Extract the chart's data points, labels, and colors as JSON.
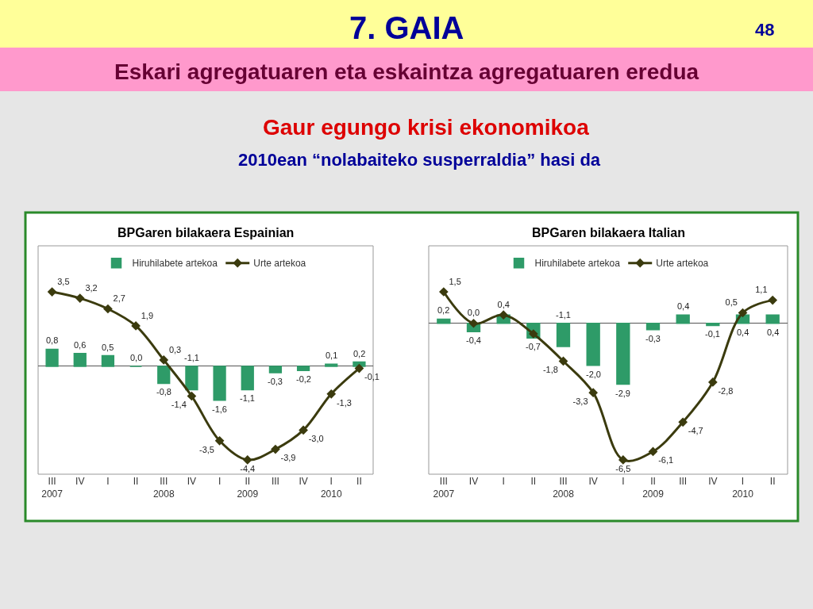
{
  "chart_data": [
    {
      "type": "bar",
      "title": "BPGaren bilakaera Espainian",
      "annotations": [
        "7. GAIA",
        "48",
        "Eskari agregatuaren eta eskaintza agregatuaren eredua",
        "Gaur egungo krisi ekonomikoa",
        "2010ean “nolabaiteko susperraldia” hasi da"
      ],
      "categories": [
        "III\n2007",
        "IV",
        "I",
        "II",
        "III\n2008",
        "IV",
        "I",
        "II\n2009",
        "III",
        "IV",
        "I\n2010",
        "II"
      ],
      "legend": "top",
      "grid": false,
      "series": [
        {
          "name": "Hiruhilabete artekoa",
          "color": "#2e9b68",
          "values": [
            0.8,
            0.6,
            0.5,
            0.0,
            -0.8,
            -1.1,
            -1.6,
            -1.1,
            -0.3,
            -0.2,
            0.1,
            0.2
          ],
          "value_labels": [
            "0,8",
            "0,6",
            "0,5",
            "0,0",
            "-0,8",
            "-1,1",
            "-1,6",
            "-1,1",
            "-0,3",
            "-0,2",
            "0,1",
            "0,2"
          ]
        },
        {
          "name": "Urte artekoa",
          "type": "line",
          "color": "#3b3b0e",
          "marker": "diamond",
          "values": [
            3.5,
            3.2,
            2.7,
            1.9,
            0.3,
            -1.4,
            -3.5,
            -4.4,
            -3.9,
            -3.0,
            -1.3,
            -0.1
          ],
          "value_labels": [
            "3,5",
            "3,2",
            "2,7",
            "1,9",
            "0,3",
            "-1,4",
            "-3,5",
            "-4,4",
            "-3,9",
            "-3,0",
            "-1,3",
            "-0,1"
          ]
        }
      ]
    },
    {
      "type": "bar",
      "title": "BPGaren bilakaera Italian",
      "categories": [
        "III\n2007",
        "IV",
        "I",
        "II",
        "III\n2008",
        "IV",
        "I",
        "II\n2009",
        "III",
        "IV",
        "I\n2010",
        "II"
      ],
      "legend": "top",
      "grid": false,
      "series": [
        {
          "name": "Hiruhilabete artekoa",
          "color": "#2e9b68",
          "values": [
            0.2,
            -0.4,
            0.4,
            -0.7,
            -1.1,
            -2.0,
            -2.9,
            -0.3,
            0.4,
            -0.1,
            0.4,
            0.4
          ],
          "value_labels": [
            "0,2",
            "-0,4",
            null,
            "-0,7",
            "-1,1",
            "-2,0",
            "-2,9",
            "-0,3",
            "0,4",
            "-0,1",
            "0,4",
            "0,4"
          ]
        },
        {
          "name": "Urte artekoa",
          "type": "line",
          "color": "#3b3b0e",
          "marker": "diamond",
          "values": [
            1.5,
            0.0,
            0.4,
            -0.5,
            -1.8,
            -3.3,
            -6.5,
            -6.1,
            -4.7,
            -2.8,
            0.5,
            1.1
          ],
          "value_labels": [
            "1,5",
            "0,0",
            "0,4",
            null,
            "-1,8",
            "-3,3",
            "-6,5",
            "-6,1",
            "-4,7",
            "-2,8",
            "0,5",
            "1,1"
          ]
        }
      ]
    }
  ]
}
